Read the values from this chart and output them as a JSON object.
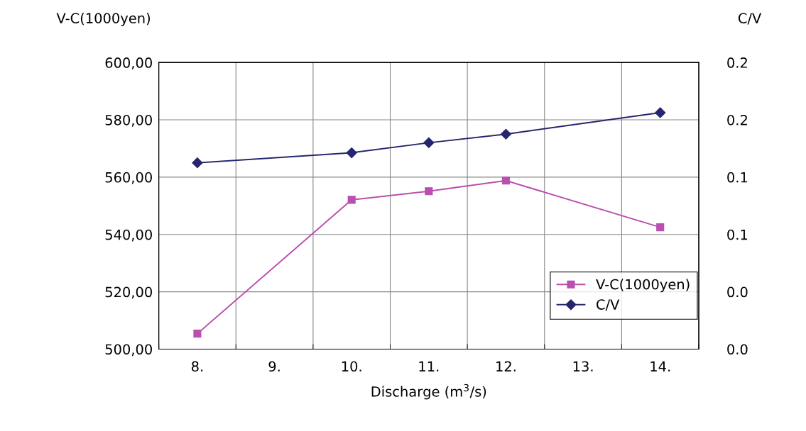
{
  "chart_data": {
    "type": "line",
    "categories": [
      "8.",
      "9.",
      "10.",
      "11.",
      "12.",
      "13.",
      "14."
    ],
    "xlabel": "Discharge (m$^{3}$/s)",
    "ylabel": "V-C(1000yen)",
    "y2label": "C/V",
    "series": [
      {
        "name": "V-C(1000yen)",
        "color": "#b94fae",
        "marker": "square",
        "values": [
          505.4,
          null,
          552.1,
          555.1,
          558.8,
          null,
          542.5
        ]
      },
      {
        "name": "C/V",
        "color": "#26266e",
        "marker": "diamond",
        "axis": "y2",
        "values": [
          0.13,
          null,
          0.137,
          0.144,
          0.15,
          null,
          0.165
        ]
      }
    ],
    "ylim": [
      500,
      600
    ],
    "yticks": [
      {
        "value": 500,
        "label": "500,00"
      },
      {
        "value": 520,
        "label": "520,00"
      },
      {
        "value": 540,
        "label": "540,00"
      },
      {
        "value": 560,
        "label": "560,00"
      },
      {
        "value": 580,
        "label": "580,00"
      },
      {
        "value": 600,
        "label": "600,00"
      }
    ],
    "y2lim": [
      0,
      0.2
    ],
    "y2ticks": [
      {
        "value": 0,
        "label": "0.0"
      },
      {
        "value": 0.04,
        "label": "0.0"
      },
      {
        "value": 0.08,
        "label": "0.1"
      },
      {
        "value": 0.12,
        "label": "0.1"
      },
      {
        "value": 0.16,
        "label": "0.2"
      },
      {
        "value": 0.2,
        "label": "0.2"
      }
    ],
    "grid": true,
    "legend": "bottom right"
  }
}
